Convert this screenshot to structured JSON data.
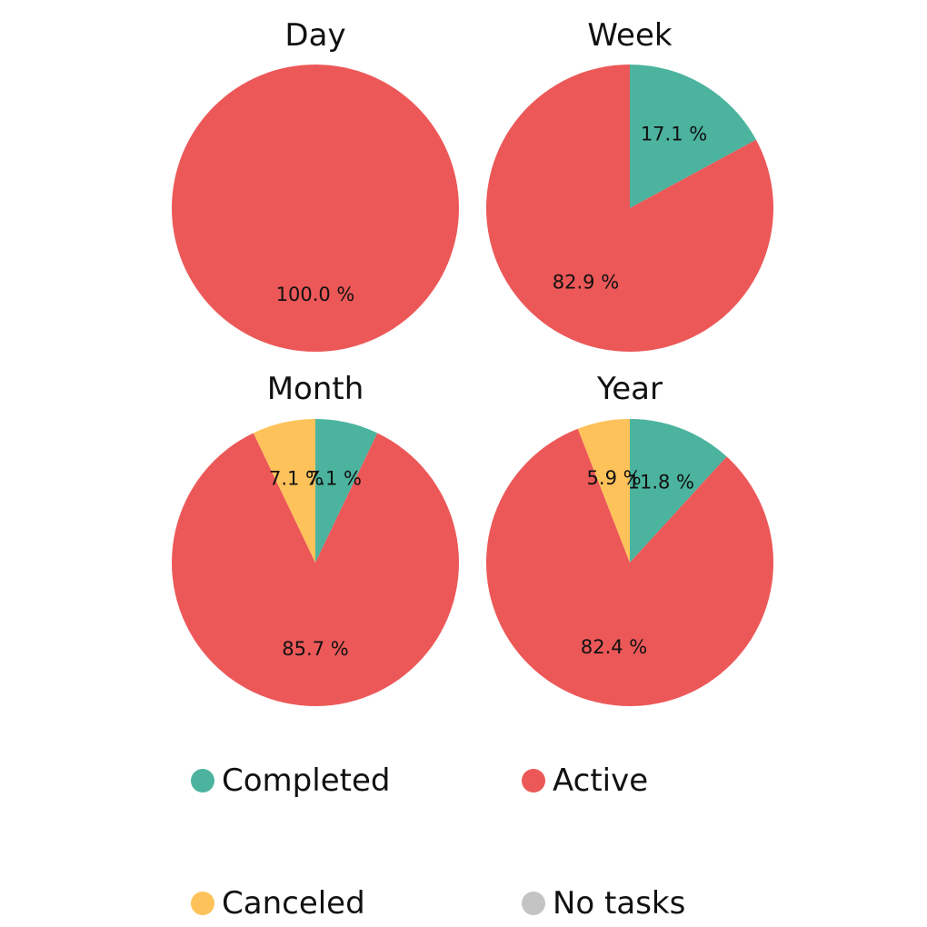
{
  "chart_data": {
    "type": "pie",
    "colors": {
      "Completed": "#4bb39e",
      "Active": "#ec5858",
      "Canceled": "#fec25a",
      "No tasks": "#c4c4c4"
    },
    "charts": [
      {
        "title": "Day",
        "slices": [
          {
            "category": "Active",
            "value": 100.0,
            "label": "100.0 %"
          }
        ]
      },
      {
        "title": "Week",
        "slices": [
          {
            "category": "Completed",
            "value": 17.1,
            "label": "17.1 %"
          },
          {
            "category": "Active",
            "value": 82.9,
            "label": "82.9 %"
          }
        ]
      },
      {
        "title": "Month",
        "slices": [
          {
            "category": "Completed",
            "value": 7.1,
            "label": "7.1 %"
          },
          {
            "category": "Active",
            "value": 85.7,
            "label": "85.7 %"
          },
          {
            "category": "Canceled",
            "value": 7.1,
            "label": "7.1 %"
          }
        ]
      },
      {
        "title": "Year",
        "slices": [
          {
            "category": "Completed",
            "value": 11.8,
            "label": "11.8 %"
          },
          {
            "category": "Active",
            "value": 82.4,
            "label": "82.4 %"
          },
          {
            "category": "Canceled",
            "value": 5.9,
            "label": "5.9 %"
          }
        ]
      }
    ],
    "legend": {
      "placement": "bottom",
      "entries": [
        "Completed",
        "Active",
        "Canceled",
        "No tasks"
      ]
    }
  }
}
